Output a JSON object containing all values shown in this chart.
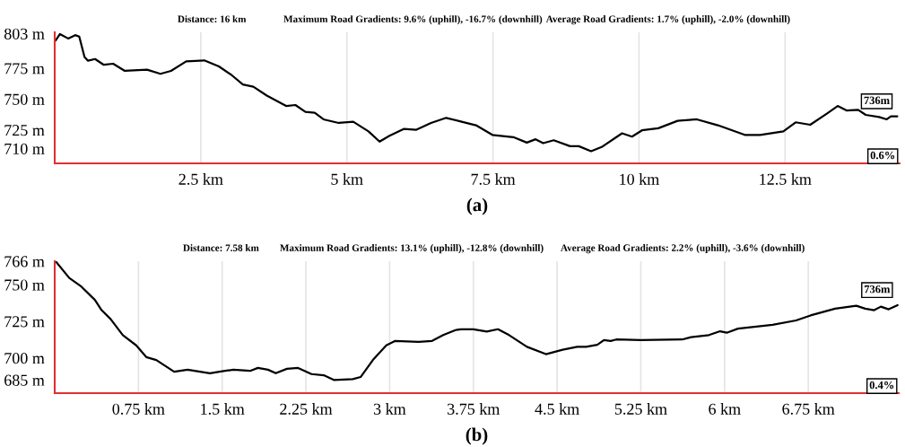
{
  "chart_data": [
    {
      "type": "line",
      "xlabel": "(a)",
      "annotations": [
        "Distance: 16 km",
        "Maximum Road Gradients: 9.6% (uphill), -16.7% (downhill)",
        "Average Road Gradients: 1.7% (uphill), -2.0% (downhill)",
        {
          "text": "736m",
          "x": 14.42,
          "y": 736
        },
        "0.6%"
      ],
      "series": [
        {
          "color": "#000000",
          "x": [
            0.015,
            0.09,
            0.23,
            0.35,
            0.42,
            0.51,
            0.57,
            0.69,
            0.84,
            1.0,
            1.2,
            1.58,
            1.81,
            1.99,
            2.25,
            2.56,
            2.81,
            3.02,
            3.22,
            3.4,
            3.63,
            3.96,
            4.12,
            4.29,
            4.45,
            4.6,
            4.86,
            5.11,
            5.37,
            5.56,
            5.73,
            5.98,
            6.19,
            6.44,
            6.7,
            6.95,
            7.21,
            7.49,
            7.85,
            8.08,
            8.23,
            8.36,
            8.54,
            8.82,
            8.97,
            9.18,
            9.36,
            9.71,
            9.88,
            10.05,
            10.33,
            10.66,
            10.99,
            11.35,
            11.81,
            12.07,
            12.47,
            12.68,
            12.93,
            13.22,
            13.4,
            13.55,
            13.75,
            13.88,
            14.11,
            14.24,
            14.31,
            14.42
          ],
          "values": [
            797.4,
            802.6,
            799,
            801.7,
            800.5,
            784.1,
            781,
            782.4,
            777.7,
            778.6,
            772.8,
            773.8,
            770.4,
            772.8,
            780.5,
            781.3,
            776.4,
            769.7,
            761.8,
            760,
            752.8,
            744.4,
            745.2,
            739.6,
            738.9,
            733.6,
            730.7,
            731.7,
            723.9,
            715.6,
            720.3,
            725.9,
            725.2,
            730.7,
            734.8,
            731.9,
            728.8,
            721,
            719.2,
            714.8,
            717.5,
            714.3,
            716.7,
            711.9,
            711.9,
            707.8,
            711.2,
            722.3,
            719.6,
            724.7,
            726.4,
            732.4,
            733.6,
            728.8,
            721,
            721,
            723.9,
            731.2,
            729.2,
            738.4,
            744.4,
            740.8,
            741.3,
            737.2,
            735.5,
            733.6,
            736,
            736
          ]
        }
      ],
      "xlim": [
        0,
        14.46
      ],
      "ylim": [
        698,
        804
      ],
      "xticks": [
        {
          "value": 2.5,
          "label": "2.5 km"
        },
        {
          "value": 5,
          "label": "5 km"
        },
        {
          "value": 7.5,
          "label": "7.5 km"
        },
        {
          "value": 10,
          "label": "10 km"
        },
        {
          "value": 12.5,
          "label": "12.5 km"
        }
      ],
      "yticks": [
        {
          "value": 710,
          "label": "710 m"
        },
        {
          "value": 725,
          "label": "725 m"
        },
        {
          "value": 750,
          "label": "750 m"
        },
        {
          "value": 775,
          "label": "775 m"
        },
        {
          "value": 803,
          "label": "803 m"
        }
      ],
      "grid": "x"
    },
    {
      "type": "line",
      "xlabel": "(b)",
      "annotations": [
        "Distance: 7.58 km",
        "Maximum Road Gradients: 13.1% (uphill), -12.8% (downhill)",
        "Average Road Gradients: 2.2% (uphill), -3.6% (downhill)",
        {
          "text": "736m",
          "x": 7.55,
          "y": 736
        },
        "0.4%"
      ],
      "series": [
        {
          "color": "#000000",
          "x": [
            0.008,
            0.13,
            0.24,
            0.36,
            0.42,
            0.5,
            0.61,
            0.73,
            0.82,
            0.91,
            1.07,
            1.19,
            1.39,
            1.5,
            1.6,
            1.75,
            1.82,
            1.91,
            1.98,
            2.08,
            2.18,
            2.3,
            2.41,
            2.5,
            2.67,
            2.74,
            2.85,
            2.97,
            3.05,
            3.26,
            3.38,
            3.48,
            3.59,
            3.64,
            3.75,
            3.87,
            3.97,
            4.07,
            4.23,
            4.4,
            4.55,
            4.68,
            4.76,
            4.86,
            4.92,
            4.98,
            5.03,
            5.25,
            5.62,
            5.7,
            5.86,
            5.96,
            6.02,
            6.12,
            6.43,
            6.64,
            6.77,
            6.99,
            7.18,
            7.26,
            7.34,
            7.4,
            7.47,
            7.55
          ],
          "values": [
            766,
            754.6,
            748.6,
            739.6,
            732.6,
            726.6,
            715.6,
            708.6,
            700.6,
            698.6,
            690.6,
            692,
            689.6,
            690.9,
            692,
            691.2,
            693.2,
            692,
            689.6,
            692.6,
            693.2,
            689,
            688.2,
            685,
            685.6,
            687,
            698.6,
            708.6,
            711.6,
            711,
            711.6,
            715.6,
            719,
            719.6,
            719.6,
            718,
            719.6,
            715.6,
            707.6,
            702.6,
            705.6,
            707.6,
            707.6,
            709,
            712.2,
            711.6,
            712.6,
            712.2,
            712.6,
            714.2,
            715.6,
            718.2,
            717.2,
            720,
            722.6,
            725.6,
            729,
            733.6,
            735.6,
            733.6,
            732.6,
            735,
            733.2,
            736
          ]
        }
      ],
      "xlim": [
        0,
        7.56
      ],
      "ylim": [
        676,
        766
      ],
      "xticks": [
        {
          "value": 0.75,
          "label": "0.75 km"
        },
        {
          "value": 1.5,
          "label": "1.5 km"
        },
        {
          "value": 2.25,
          "label": "2.25 km"
        },
        {
          "value": 3,
          "label": "3 km"
        },
        {
          "value": 3.75,
          "label": "3.75 km"
        },
        {
          "value": 4.5,
          "label": "4.5 km"
        },
        {
          "value": 5.25,
          "label": "5.25 km"
        },
        {
          "value": 6,
          "label": "6 km"
        },
        {
          "value": 6.75,
          "label": "6.75 km"
        }
      ],
      "yticks": [
        {
          "value": 685,
          "label": "685 m"
        },
        {
          "value": 700,
          "label": "700 m"
        },
        {
          "value": 725,
          "label": "725 m"
        },
        {
          "value": 750,
          "label": "750 m"
        },
        {
          "value": 766,
          "label": "766 m"
        }
      ],
      "grid": "x"
    }
  ]
}
